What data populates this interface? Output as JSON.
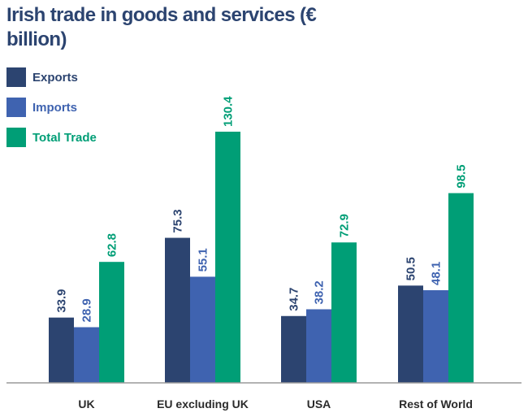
{
  "chart_data": {
    "type": "bar",
    "title": "Irish trade in goods and services (€ billion)",
    "categories": [
      "UK",
      "EU excluding UK",
      "USA",
      "Rest of World"
    ],
    "series": [
      {
        "name": "Exports",
        "color": "#2c4470",
        "values": [
          33.9,
          75.3,
          34.7,
          50.5
        ]
      },
      {
        "name": "Imports",
        "color": "#3f63b0",
        "values": [
          28.9,
          55.1,
          38.2,
          48.1
        ]
      },
      {
        "name": "Total Trade",
        "color": "#009e76",
        "values": [
          62.8,
          130.4,
          72.9,
          98.5
        ]
      }
    ],
    "value_labels": [
      [
        "33.9",
        "75.3",
        "34.7",
        "50.5"
      ],
      [
        "28.9",
        "55.1",
        "38.2",
        "48.1"
      ],
      [
        "62.8",
        "130.4",
        "72.9",
        "98.5"
      ]
    ],
    "xlabel": "",
    "ylabel": "",
    "ylim": [
      0,
      130.4
    ],
    "grid": false,
    "legend": "top-left"
  },
  "colors": {
    "title": "#2c4470",
    "axis": "#9a9a9a",
    "category_text": "#2b2b2b"
  }
}
